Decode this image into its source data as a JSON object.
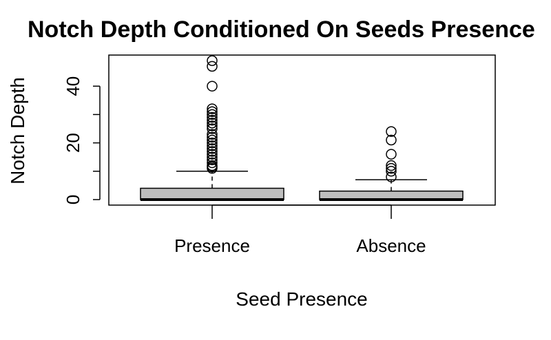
{
  "chart_data": {
    "type": "boxplot",
    "title": "Notch Depth Conditioned On Seeds Presence",
    "xlabel": "Seed Presence",
    "ylabel": "Notch Depth",
    "ylim": [
      -2,
      50
    ],
    "yticks": [
      0,
      10,
      20,
      30,
      40
    ],
    "ytick_labels": [
      "0",
      "",
      "20",
      "",
      "40"
    ],
    "categories": [
      "Presence",
      "Absence"
    ],
    "boxes": [
      {
        "name": "Presence",
        "min": 0,
        "q1": 0,
        "median": 0,
        "q3": 4,
        "max": 10,
        "outliers": [
          11,
          11.5,
          12,
          13,
          14,
          15,
          16,
          17,
          18,
          19,
          20,
          21,
          22,
          23,
          25,
          26,
          27,
          28,
          29,
          30,
          31,
          32,
          40,
          47,
          49
        ]
      },
      {
        "name": "Absence",
        "min": 0,
        "q1": 0,
        "median": 0,
        "q3": 3,
        "max": 7,
        "outliers": [
          8,
          10,
          11,
          12,
          16,
          21,
          24
        ]
      }
    ],
    "colors": {
      "box_fill": "#bebebe",
      "stroke": "#000000"
    },
    "grid": false,
    "legend": "none"
  }
}
